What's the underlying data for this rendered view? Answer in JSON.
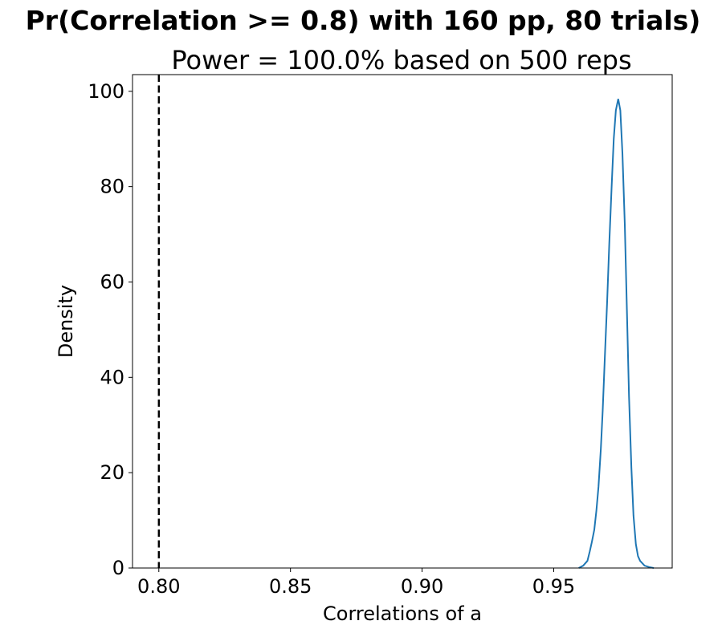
{
  "chart_data": {
    "type": "line",
    "suptitle": "Pr(Correlation >= 0.8) with 160 pp, 80 trials)",
    "title": "Power = 100.0% based on 500 reps",
    "xlabel": "Correlations of a",
    "ylabel": "Density",
    "xlim": [
      0.79,
      0.995
    ],
    "ylim": [
      0,
      103.5
    ],
    "xticks": [
      0.8,
      0.85,
      0.9,
      0.95
    ],
    "xtick_labels": [
      "0.80",
      "0.85",
      "0.90",
      "0.95"
    ],
    "yticks": [
      0,
      20,
      40,
      60,
      80,
      100
    ],
    "ytick_labels": [
      "0",
      "20",
      "40",
      "60",
      "80",
      "100"
    ],
    "grid": false,
    "reference_line": {
      "x": 0.8,
      "style": "dashed",
      "color": "#000000"
    },
    "series": [
      {
        "color": "#1f77b4",
        "x": [
          0.9595,
          0.9612,
          0.9628,
          0.9637,
          0.9645,
          0.9654,
          0.9662,
          0.967,
          0.9679,
          0.9686,
          0.9694,
          0.9703,
          0.9711,
          0.972,
          0.9728,
          0.9736,
          0.9745,
          0.9753,
          0.9761,
          0.977,
          0.9778,
          0.9786,
          0.9795,
          0.9803,
          0.9812,
          0.982,
          0.9828,
          0.9845,
          0.9862,
          0.988
        ],
        "y": [
          0.0,
          0.5,
          1.5,
          3.5,
          5.5,
          8.0,
          12.0,
          17.0,
          25.0,
          33.0,
          44.0,
          56.0,
          68.0,
          80.0,
          90.0,
          96.0,
          98.4,
          96.0,
          87.0,
          72.0,
          54.0,
          36.0,
          21.0,
          11.0,
          5.0,
          2.5,
          1.5,
          0.5,
          0.2,
          0.0
        ]
      }
    ]
  }
}
